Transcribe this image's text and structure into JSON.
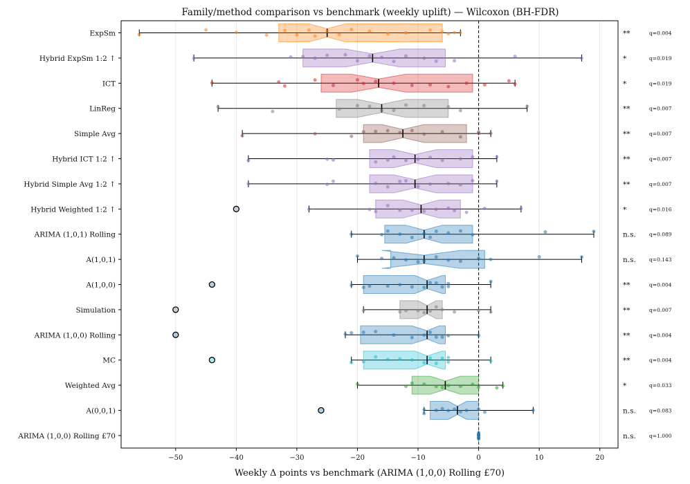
{
  "chart_data": {
    "type": "boxplot",
    "title": "Family/method comparison vs benchmark (weekly uplift) — Wilcoxon (BH-FDR)",
    "xlabel": "Weekly Δ points vs benchmark (ARIMA (1,0,0) Rolling £70)",
    "ylabel": "",
    "xlim": [
      -59,
      23
    ],
    "xticks": [
      -50,
      -40,
      -30,
      -20,
      -10,
      0,
      10,
      20
    ],
    "xtick_labels": [
      "−50",
      "−40",
      "−30",
      "−20",
      "−10",
      "0",
      "10",
      "20"
    ],
    "grid": "vertical",
    "reference_line": 0,
    "categories": [
      "ExpSm",
      "Hybrid ExpSm 1:2 ↑",
      "ICT",
      "LinReg",
      "Simple Avg",
      "Hybrid ICT 1:2 ↑",
      "Hybrid Simple Avg 1:2 ↑",
      "Hybrid Weighted 1:2 ↑",
      "ARIMA (1,0,1) Rolling",
      "A(1,0,1)",
      "A(1,0,0)",
      "Simulation",
      "ARIMA (1,0,0) Rolling",
      "MC",
      "Weighted Avg",
      "A(0,0,1)",
      "ARIMA (1,0,0) Rolling £70"
    ],
    "series": [
      {
        "name": "ExpSm",
        "color": "#ff7f0e",
        "whisker_low": -56,
        "q1": -33,
        "median": -25,
        "q3": -6,
        "whisker_high": -3,
        "notch": [
          -28,
          -22
        ],
        "outliers": [],
        "significance": "**",
        "q_label": "q=0.004",
        "points": [
          -56,
          -45,
          -40,
          -35,
          -32,
          -30,
          -28,
          -27,
          -25,
          -23,
          -21,
          -18,
          -15,
          -12,
          -8,
          -6,
          -5,
          -4,
          -3
        ]
      },
      {
        "name": "Hybrid ExpSm 1:2 ↑",
        "color": "#9467bd",
        "whisker_low": -47,
        "q1": -29,
        "median": -17.5,
        "q3": -5.5,
        "whisker_high": 17,
        "notch": [
          -22,
          -13
        ],
        "outliers": [],
        "significance": "*",
        "q_label": "q=0.019",
        "points": [
          -47,
          -31,
          -29,
          -27,
          -25,
          -22,
          -20,
          -18,
          -16,
          -14,
          -12,
          -9,
          -7,
          -4,
          6,
          17
        ]
      },
      {
        "name": "ICT",
        "color": "#d62728",
        "whisker_low": -44,
        "q1": -26,
        "median": -16.5,
        "q3": -1,
        "whisker_high": 6,
        "notch": [
          -21,
          -12
        ],
        "outliers": [],
        "significance": "*",
        "q_label": "q=0.019",
        "points": [
          -44,
          -33,
          -32,
          -27,
          -24,
          -20,
          -19,
          -17,
          -14,
          -11,
          -8,
          -5,
          -2,
          1,
          5,
          6
        ]
      },
      {
        "name": "LinReg",
        "color": "#7f7f7f",
        "whisker_low": -43,
        "q1": -23.5,
        "median": -16,
        "q3": -5,
        "whisker_high": 8,
        "notch": [
          -20,
          -12
        ],
        "outliers": [],
        "significance": "**",
        "q_label": "q=0.007",
        "points": [
          -43,
          -34,
          -23,
          -20,
          -18,
          -16,
          -14,
          -12,
          -9,
          -5,
          -3,
          8
        ]
      },
      {
        "name": "Simple Avg",
        "color": "#8c564b",
        "whisker_low": -39,
        "q1": -19,
        "median": -12.5,
        "q3": -2,
        "whisker_high": 2,
        "notch": [
          -16,
          -9
        ],
        "outliers": [],
        "significance": "**",
        "q_label": "q=0.007",
        "points": [
          -39,
          -27,
          -21,
          -19,
          -17,
          -15,
          -13,
          -11,
          -9,
          -6,
          -3,
          0,
          0,
          2
        ]
      },
      {
        "name": "Hybrid ICT 1:2 ↑",
        "color": "#9467bd",
        "whisker_low": -38,
        "q1": -18,
        "median": -10.5,
        "q3": -1,
        "whisker_high": 3,
        "notch": [
          -14,
          -7
        ],
        "outliers": [],
        "significance": "**",
        "q_label": "q=0.007",
        "points": [
          -38,
          -25,
          -24,
          -17,
          -15,
          -14,
          -12,
          -10,
          -8,
          -6,
          -3,
          -1,
          3
        ]
      },
      {
        "name": "Hybrid Simple Avg 1:2 ↑",
        "color": "#9467bd",
        "whisker_low": -38,
        "q1": -18,
        "median": -10.5,
        "q3": -1,
        "whisker_high": 3,
        "notch": [
          -14,
          -7
        ],
        "outliers": [],
        "significance": "**",
        "q_label": "q=0.007",
        "points": [
          -38,
          -25,
          -24,
          -17,
          -15,
          -13,
          -12,
          -10,
          -8,
          -5,
          -3,
          -1,
          3
        ]
      },
      {
        "name": "Hybrid Weighted 1:2 ↑",
        "color": "#9467bd",
        "whisker_low": -28,
        "q1": -17,
        "median": -9.5,
        "q3": -3,
        "whisker_high": 7,
        "notch": [
          -12.5,
          -6.5
        ],
        "outliers": [
          -40
        ],
        "significance": "*",
        "q_label": "q=0.016",
        "points": [
          -28,
          -18,
          -17,
          -15,
          -13,
          -11,
          -9,
          -7,
          -5,
          -4,
          -2,
          1,
          7
        ]
      },
      {
        "name": "ARIMA (1,0,1) Rolling",
        "color": "#1f77b4",
        "whisker_low": -21,
        "q1": -15.5,
        "median": -9,
        "q3": -1,
        "whisker_high": 19,
        "notch": [
          -12,
          -6
        ],
        "outliers": [],
        "significance": "n.s.",
        "q_label": "q=0.089",
        "points": [
          -21,
          -16,
          -15,
          -13,
          -11,
          -9,
          -8,
          -7,
          -5,
          -3,
          -1,
          11,
          19
        ]
      },
      {
        "name": "A(1,0,1)",
        "color": "#1f77b4",
        "whisker_low": -20,
        "q1": -14.5,
        "median": -9,
        "q3": 1,
        "whisker_high": 17,
        "notch": [
          -16,
          -3
        ],
        "outliers": [],
        "significance": "n.s.",
        "q_label": "q=0.143",
        "points": [
          -20,
          -16,
          -14,
          -12,
          -10,
          -9,
          -7,
          -5,
          -3,
          0,
          2,
          10,
          17
        ]
      },
      {
        "name": "A(1,0,0)",
        "color": "#1f77b4",
        "whisker_low": -21,
        "q1": -19,
        "median": -8.5,
        "q3": -5.5,
        "whisker_high": 2,
        "notch": [
          -10.5,
          -6
        ],
        "outliers": [
          -44
        ],
        "significance": "**",
        "q_label": "q=0.004",
        "points": [
          -21,
          -19,
          -18,
          -15,
          -13,
          -11,
          -9,
          -8,
          -7,
          -6,
          -5,
          -5,
          2
        ]
      },
      {
        "name": "Simulation",
        "color": "#7f7f7f",
        "whisker_low": -19,
        "q1": -13,
        "median": -8.5,
        "q3": -6,
        "whisker_high": 2,
        "notch": [
          -10,
          -7
        ],
        "outliers": [
          -50
        ],
        "significance": "**",
        "q_label": "q=0.007",
        "points": [
          -19,
          -13,
          -12,
          -10,
          -9,
          -8,
          -7,
          -6,
          -4,
          0,
          2
        ]
      },
      {
        "name": "ARIMA (1,0,0) Rolling",
        "color": "#1f77b4",
        "whisker_low": -22,
        "q1": -19.5,
        "median": -8.5,
        "q3": -5.5,
        "whisker_high": 0,
        "notch": [
          -11,
          -6.5
        ],
        "outliers": [
          -50
        ],
        "significance": "**",
        "q_label": "q=0.004",
        "points": [
          -22,
          -21,
          -19,
          -17,
          -14,
          -11,
          -9,
          -8,
          -7,
          -6,
          -5,
          0
        ]
      },
      {
        "name": "MC",
        "color": "#17becf",
        "whisker_low": -21,
        "q1": -19,
        "median": -8.5,
        "q3": -5.5,
        "whisker_high": 2,
        "notch": [
          -10.5,
          -6
        ],
        "outliers": [
          -44
        ],
        "significance": "**",
        "q_label": "q=0.004",
        "points": [
          -21,
          -19,
          -17,
          -15,
          -13,
          -11,
          -9,
          -8,
          -7,
          -6,
          -5,
          -5,
          2
        ]
      },
      {
        "name": "Weighted Avg",
        "color": "#2ca02c",
        "whisker_low": -20,
        "q1": -11,
        "median": -5.5,
        "q3": 0,
        "whisker_high": 4,
        "notch": [
          -8,
          -3
        ],
        "outliers": [],
        "significance": "*",
        "q_label": "q=0.033",
        "points": [
          -20,
          -12,
          -11,
          -9,
          -7,
          -6,
          -5,
          -3,
          -1,
          0,
          3,
          4
        ]
      },
      {
        "name": "A(0,0,1)",
        "color": "#1f77b4",
        "whisker_low": -9,
        "q1": -8,
        "median": -3.5,
        "q3": 0,
        "whisker_high": 9,
        "notch": [
          -5,
          -2
        ],
        "outliers": [
          -26
        ],
        "significance": "n.s.",
        "q_label": "q=0.083",
        "points": [
          -9,
          -9,
          -7,
          -6,
          -5,
          -4,
          -3,
          -2,
          0,
          1,
          9
        ]
      },
      {
        "name": "ARIMA (1,0,0) Rolling £70",
        "color": "#1f77b4",
        "whisker_low": 0,
        "q1": 0,
        "median": 0,
        "q3": 0,
        "whisker_high": 0,
        "notch": [
          0,
          0
        ],
        "outliers": [],
        "significance": "n.s.",
        "q_label": "q=1.000",
        "points": [
          0,
          0,
          0,
          0,
          0,
          0,
          0,
          0,
          0,
          0
        ]
      }
    ]
  }
}
